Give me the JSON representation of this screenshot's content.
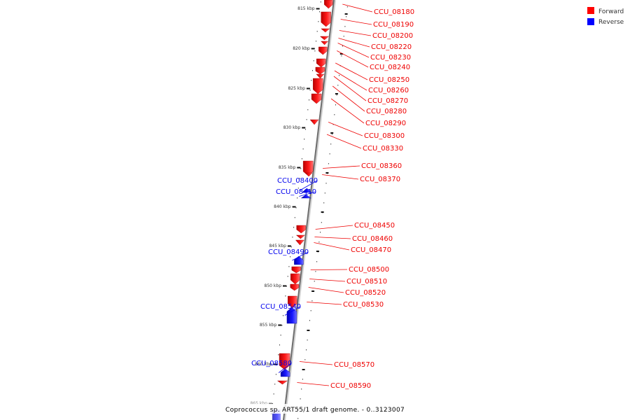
{
  "legend": [
    {
      "label": "Forward",
      "color": "#ff0000"
    },
    {
      "label": "Reverse",
      "color": "#0000ff"
    }
  ],
  "caption": "Coprococcus sp. ART55/1 draft genome. - 0..3123007",
  "ticks": [
    "815 kbp",
    "820 kbp",
    "825 kbp",
    "830 kbp",
    "835 kbp",
    "840 kbp",
    "845 kbp",
    "850 kbp",
    "855 kbp",
    "860 kbp",
    "865 kbp"
  ],
  "genes": [
    {
      "id": "CCU_08180",
      "strand": "forward"
    },
    {
      "id": "CCU_08190",
      "strand": "forward"
    },
    {
      "id": "CCU_08200",
      "strand": "forward"
    },
    {
      "id": "CCU_08220",
      "strand": "forward"
    },
    {
      "id": "CCU_08230",
      "strand": "forward"
    },
    {
      "id": "CCU_08240",
      "strand": "forward"
    },
    {
      "id": "CCU_08250",
      "strand": "forward"
    },
    {
      "id": "CCU_08260",
      "strand": "forward"
    },
    {
      "id": "CCU_08270",
      "strand": "forward"
    },
    {
      "id": "CCU_08280",
      "strand": "forward"
    },
    {
      "id": "CCU_08290",
      "strand": "forward"
    },
    {
      "id": "CCU_08300",
      "strand": "forward"
    },
    {
      "id": "CCU_08330",
      "strand": "forward"
    },
    {
      "id": "CCU_08360",
      "strand": "forward"
    },
    {
      "id": "CCU_08370",
      "strand": "forward"
    },
    {
      "id": "CCU_08400",
      "strand": "reverse"
    },
    {
      "id": "CCU_08410",
      "strand": "reverse"
    },
    {
      "id": "CCU_08450",
      "strand": "forward"
    },
    {
      "id": "CCU_08460",
      "strand": "forward"
    },
    {
      "id": "CCU_08470",
      "strand": "forward"
    },
    {
      "id": "CCU_08490",
      "strand": "reverse"
    },
    {
      "id": "CCU_08500",
      "strand": "forward"
    },
    {
      "id": "CCU_08510",
      "strand": "forward"
    },
    {
      "id": "CCU_08520",
      "strand": "forward"
    },
    {
      "id": "CCU_08530",
      "strand": "forward"
    },
    {
      "id": "CCU_08540",
      "strand": "reverse"
    },
    {
      "id": "CCU_08570",
      "strand": "forward"
    },
    {
      "id": "CCU_08580",
      "strand": "reverse"
    },
    {
      "id": "CCU_08590",
      "strand": "forward"
    }
  ]
}
